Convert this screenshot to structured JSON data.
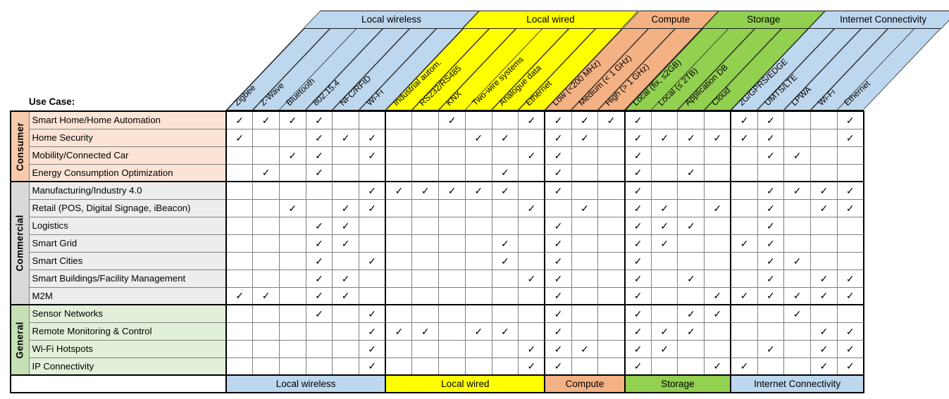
{
  "page": {
    "use_case_label": "Use Case:"
  },
  "chart_data": {
    "type": "table",
    "description": "Matrix of IoT use cases versus supported technologies, marked with check marks",
    "check_symbol": "✓",
    "column_groups": [
      {
        "label": "Local wireless",
        "color": "#BDD7EE",
        "span": 6
      },
      {
        "label": "Local wired",
        "color": "#FFFF00",
        "span": 6
      },
      {
        "label": "Compute",
        "color": "#F4B183",
        "span": 3
      },
      {
        "label": "Storage",
        "color": "#92D050",
        "span": 4
      },
      {
        "label": "Internet Connectivity",
        "color": "#BDD7EE",
        "span": 5
      }
    ],
    "columns": [
      "Zigbee",
      "Z-Wave",
      "Bluetooth",
      "802.15.4",
      "NFC/RFID",
      "Wi-Fi",
      "Industrial autom.",
      "RS232/RS485",
      "KNX",
      "Two-wire systems",
      "Analogue data",
      "Ethernet",
      "Low (<200 MHz)",
      "Medium (< 1 GHz)",
      "High (> 1 GHz)",
      "Local (fix, ≤2GB)",
      "Local (≤ 2TB)",
      "Application DB",
      "Cloud",
      "2G/GPRS/EDGE",
      "UMTS/LTE",
      "LPWA",
      "Wi-Fi",
      "Ethernet"
    ],
    "row_groups": [
      {
        "label": "Consumer",
        "band_color": "#F7CAAC",
        "row_color": "#FBE4D5",
        "rows": [
          {
            "label": "Smart Home/Home Automation",
            "checks": [
              1,
              1,
              1,
              1,
              0,
              0,
              0,
              0,
              1,
              0,
              0,
              1,
              1,
              1,
              1,
              1,
              0,
              0,
              0,
              1,
              1,
              0,
              0,
              1
            ]
          },
          {
            "label": "Home Security",
            "checks": [
              1,
              0,
              0,
              1,
              1,
              1,
              0,
              0,
              0,
              1,
              1,
              0,
              1,
              1,
              0,
              1,
              1,
              1,
              1,
              1,
              1,
              0,
              0,
              1
            ]
          },
          {
            "label": "Mobility/Connected Car",
            "checks": [
              0,
              0,
              1,
              1,
              0,
              1,
              0,
              0,
              0,
              0,
              0,
              1,
              1,
              0,
              0,
              1,
              0,
              0,
              0,
              0,
              1,
              1,
              0,
              0
            ]
          },
          {
            "label": "Energy Consumption Optimization",
            "checks": [
              0,
              1,
              0,
              1,
              0,
              0,
              0,
              0,
              0,
              0,
              1,
              0,
              1,
              0,
              0,
              1,
              0,
              1,
              0,
              0,
              0,
              0,
              0,
              0
            ]
          }
        ]
      },
      {
        "label": "Commercial",
        "band_color": "#D9D9D9",
        "row_color": "#EDEDED",
        "rows": [
          {
            "label": "Manufacturing/Industry 4.0",
            "checks": [
              0,
              0,
              0,
              0,
              0,
              1,
              1,
              1,
              1,
              1,
              1,
              0,
              1,
              0,
              0,
              1,
              0,
              0,
              0,
              0,
              1,
              1,
              1,
              1
            ]
          },
          {
            "label": "Retail (POS, Digital Signage, iBeacon)",
            "checks": [
              0,
              0,
              1,
              0,
              1,
              1,
              0,
              0,
              0,
              0,
              0,
              1,
              0,
              1,
              0,
              1,
              1,
              0,
              1,
              0,
              1,
              0,
              1,
              1
            ]
          },
          {
            "label": "Logistics",
            "checks": [
              0,
              0,
              0,
              1,
              1,
              0,
              0,
              0,
              0,
              0,
              0,
              0,
              1,
              0,
              0,
              1,
              1,
              1,
              0,
              0,
              1,
              0,
              0,
              0
            ]
          },
          {
            "label": "Smart Grid",
            "checks": [
              0,
              0,
              0,
              1,
              1,
              0,
              0,
              0,
              0,
              0,
              1,
              0,
              1,
              0,
              0,
              1,
              1,
              0,
              0,
              1,
              1,
              0,
              0,
              0
            ]
          },
          {
            "label": "Smart Cities",
            "checks": [
              0,
              0,
              0,
              1,
              0,
              1,
              0,
              0,
              0,
              0,
              1,
              0,
              1,
              0,
              0,
              1,
              0,
              0,
              0,
              0,
              1,
              1,
              0,
              0
            ]
          },
          {
            "label": "Smart Buildings/Facility Management",
            "checks": [
              0,
              0,
              0,
              1,
              1,
              0,
              0,
              0,
              0,
              0,
              0,
              1,
              1,
              0,
              0,
              1,
              0,
              1,
              0,
              0,
              1,
              0,
              1,
              1
            ]
          },
          {
            "label": "M2M",
            "checks": [
              1,
              1,
              0,
              1,
              1,
              0,
              0,
              0,
              0,
              0,
              0,
              0,
              1,
              0,
              0,
              1,
              0,
              0,
              1,
              1,
              1,
              1,
              1,
              1
            ]
          }
        ]
      },
      {
        "label": "General",
        "band_color": "#C5E0B4",
        "row_color": "#E2EFD9",
        "rows": [
          {
            "label": "Sensor Networks",
            "checks": [
              0,
              0,
              0,
              1,
              0,
              1,
              0,
              0,
              0,
              0,
              0,
              0,
              1,
              0,
              0,
              1,
              0,
              1,
              1,
              0,
              0,
              1,
              0,
              0
            ]
          },
          {
            "label": "Remote Monitoring & Control",
            "checks": [
              0,
              0,
              0,
              0,
              0,
              1,
              1,
              1,
              0,
              1,
              1,
              0,
              1,
              0,
              0,
              1,
              1,
              1,
              0,
              0,
              0,
              0,
              1,
              1
            ]
          },
          {
            "label": "Wi-Fi Hotspots",
            "checks": [
              0,
              0,
              0,
              0,
              0,
              1,
              0,
              0,
              0,
              0,
              0,
              1,
              1,
              1,
              0,
              1,
              1,
              0,
              0,
              0,
              1,
              0,
              1,
              1
            ]
          },
          {
            "label": "IP Connectivity",
            "checks": [
              0,
              0,
              0,
              0,
              0,
              1,
              0,
              0,
              0,
              0,
              0,
              1,
              1,
              0,
              0,
              1,
              0,
              0,
              1,
              1,
              0,
              0,
              1,
              1
            ]
          }
        ]
      }
    ]
  }
}
